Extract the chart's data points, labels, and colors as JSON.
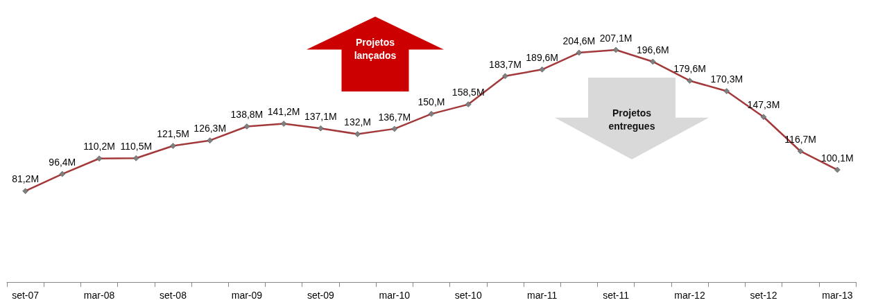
{
  "chart_data": {
    "type": "line",
    "categories": [
      "set-07",
      null,
      "mar-08",
      null,
      "set-08",
      null,
      "mar-09",
      null,
      "set-09",
      null,
      "mar-10",
      null,
      "set-10",
      null,
      "mar-11",
      null,
      "set-11",
      null,
      "mar-12",
      null,
      "set-12",
      null,
      "mar-13"
    ],
    "series": [
      {
        "color": "#a3393a",
        "values": [
          81.2,
          96.4,
          110.2,
          110.5,
          121.5,
          126.3,
          138.8,
          141.2,
          137.1,
          132,
          136.7,
          150,
          158.5,
          183.7,
          189.6,
          204.6,
          207.1,
          196.6,
          179.6,
          170.3,
          147.3,
          116.7,
          100.1
        ],
        "value_labels": [
          "81,2M",
          "96,4M",
          "110,2M",
          "110,5M",
          "121,5M",
          "126,3M",
          "138,8M",
          "141,2M",
          "137,1M",
          "132,M",
          "136,7M",
          "150,M",
          "158,5M",
          "183,7M",
          "189,6M",
          "204,6M",
          "207,1M",
          "196,6M",
          "179,6M",
          "170,3M",
          "147,3M",
          "116,7M",
          "100,1M"
        ]
      }
    ],
    "annotations": [
      "Projetos lançados",
      "Projetos entregues"
    ],
    "marker": "diamond",
    "line_style": "solid",
    "grid": false,
    "tick_labels": "x"
  }
}
